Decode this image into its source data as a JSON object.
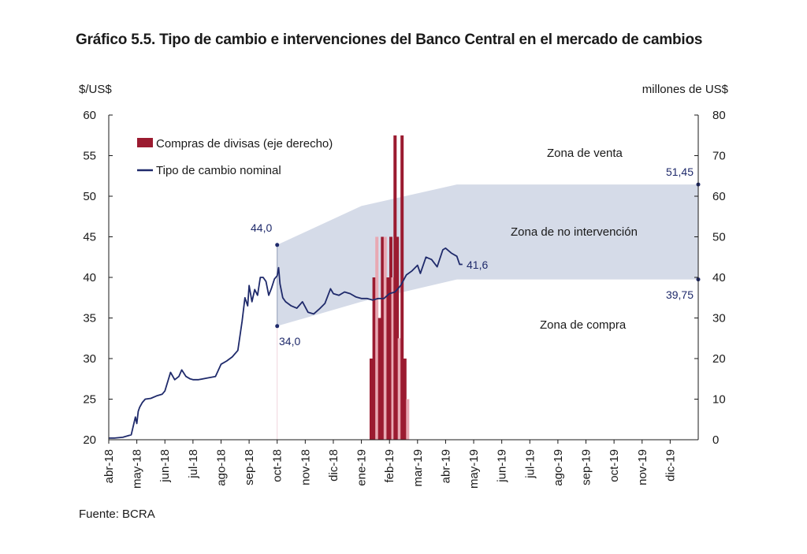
{
  "figure": {
    "title": "Gráfico 5.5. Tipo de cambio e intervenciones del Banco Central en el mercado de cambios",
    "source": "Fuente: BCRA"
  },
  "colors": {
    "line": "#1f2a6b",
    "bars": "#9b1b30",
    "bars_light": "#e8a9b3",
    "band": "#d5dbe8",
    "axis": "#1a1a1a",
    "annotation": "#1f2a6b"
  },
  "chart_data": {
    "type": "line",
    "title": "Gráfico 5.5. Tipo de cambio e intervenciones del Banco Central en el mercado de cambios",
    "ylabel_left": "$/US$",
    "ylabel_right": "millones de US$",
    "ylim_left": [
      20,
      60
    ],
    "ylim_right": [
      0,
      80
    ],
    "yticks_left": [
      20,
      25,
      30,
      35,
      40,
      45,
      50,
      55,
      60
    ],
    "yticks_right": [
      0,
      10,
      20,
      30,
      40,
      50,
      60,
      70,
      80
    ],
    "x_month_labels": [
      "abr-18",
      "may-18",
      "jun-18",
      "jul-18",
      "ago-18",
      "sep-18",
      "oct-18",
      "nov-18",
      "dic-18",
      "ene-19",
      "feb-19",
      "mar-19",
      "abr-19",
      "may-19",
      "jun-19",
      "jul-19",
      "ago-19",
      "sep-19",
      "oct-19",
      "nov-19",
      "dic-19"
    ],
    "legend": [
      {
        "name": "Compras de divisas (eje derecho)",
        "kind": "bar"
      },
      {
        "name": "Tipo de cambio nominal",
        "kind": "line"
      }
    ],
    "series": [
      {
        "name": "Tipo de cambio nominal",
        "axis": "left",
        "x_month_index": [
          0,
          0.2,
          0.5,
          0.8,
          0.95,
          1.0,
          1.05,
          1.1,
          1.2,
          1.3,
          1.5,
          1.7,
          1.9,
          2.0,
          2.2,
          2.35,
          2.5,
          2.6,
          2.75,
          2.9,
          3.0,
          3.2,
          3.5,
          3.8,
          4.0,
          4.2,
          4.4,
          4.6,
          4.75,
          4.85,
          4.95,
          5.0,
          5.1,
          5.2,
          5.3,
          5.4,
          5.5,
          5.6,
          5.7,
          5.8,
          5.9,
          6.0,
          6.05,
          6.1,
          6.2,
          6.3,
          6.5,
          6.7,
          6.9,
          7.1,
          7.3,
          7.5,
          7.7,
          7.9,
          8.0,
          8.2,
          8.4,
          8.6,
          8.8,
          9.0,
          9.2,
          9.4,
          9.6,
          9.8,
          10.0,
          10.2,
          10.4,
          10.6,
          10.8,
          11.0,
          11.1,
          11.3,
          11.5,
          11.7,
          11.9,
          12.0,
          12.2,
          12.4,
          12.5,
          12.6
        ],
        "values": [
          20.2,
          20.2,
          20.3,
          20.6,
          22.8,
          22.0,
          23.5,
          24.0,
          24.6,
          25.0,
          25.1,
          25.4,
          25.6,
          26.0,
          28.3,
          27.4,
          27.8,
          28.6,
          27.8,
          27.5,
          27.4,
          27.4,
          27.6,
          27.8,
          29.3,
          29.7,
          30.2,
          31.0,
          34.6,
          37.5,
          36.5,
          39.0,
          37.0,
          38.5,
          37.8,
          40.0,
          40.0,
          39.5,
          37.8,
          38.7,
          39.8,
          40.2,
          41.2,
          39.2,
          37.5,
          37.0,
          36.5,
          36.2,
          37.0,
          35.7,
          35.5,
          36.1,
          36.8,
          38.6,
          38.0,
          37.8,
          38.2,
          38.0,
          37.6,
          37.4,
          37.4,
          37.2,
          37.4,
          37.4,
          38.0,
          38.2,
          39.0,
          40.3,
          40.8,
          41.5,
          40.5,
          42.5,
          42.2,
          41.3,
          43.4,
          43.6,
          43.0,
          42.6,
          41.6,
          41.6
        ]
      },
      {
        "name": "Compras de divisas (eje derecho)",
        "axis": "right",
        "x_month_index": [
          9.35,
          9.45,
          9.55,
          9.65,
          9.75,
          9.85,
          9.95,
          10.05,
          10.12,
          10.2,
          10.28,
          10.35,
          10.45,
          10.55,
          10.65
        ],
        "values": [
          20,
          40,
          50,
          30,
          50,
          50,
          40,
          50,
          40,
          75,
          50,
          25,
          75,
          20,
          10
        ]
      }
    ],
    "band": {
      "start": "oct-18",
      "end": "dic-19",
      "upper_start": 44.0,
      "upper_end": 51.45,
      "lower_start": 34.0,
      "lower_end": 39.75
    },
    "annotations": [
      "44,0",
      "34,0",
      "41,6",
      "51,45",
      "39,75"
    ],
    "zones": [
      "Zona de venta",
      "Zona de no intervención",
      "Zona de compra"
    ]
  }
}
